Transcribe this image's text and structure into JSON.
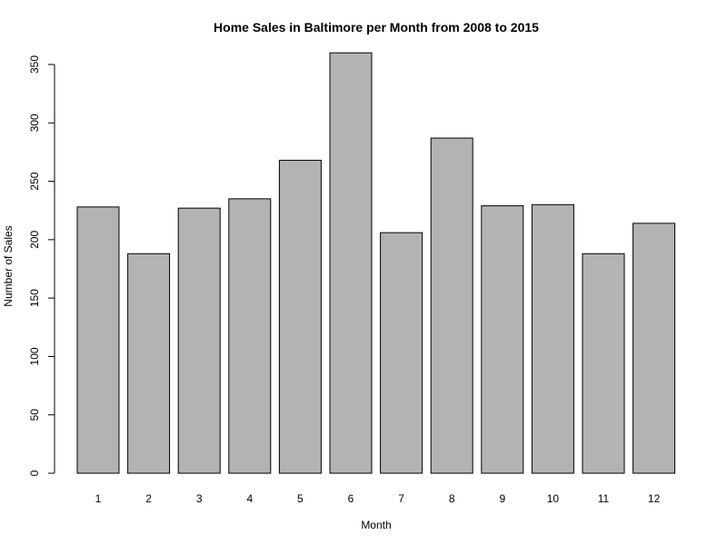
{
  "chart_data": {
    "type": "bar",
    "title": "Home Sales in Baltimore per Month from 2008 to 2015",
    "xlabel": "Month",
    "ylabel": "Number of Sales",
    "categories": [
      "1",
      "2",
      "3",
      "4",
      "5",
      "6",
      "7",
      "8",
      "9",
      "10",
      "11",
      "12"
    ],
    "values": [
      228,
      188,
      227,
      235,
      268,
      360,
      206,
      287,
      229,
      230,
      188,
      214
    ],
    "ylim": [
      0,
      360
    ],
    "yticks": [
      0,
      50,
      100,
      150,
      200,
      250,
      300,
      350
    ],
    "grid": false,
    "bar_color": "#b3b3b3",
    "bar_edge_color": "#000000"
  }
}
